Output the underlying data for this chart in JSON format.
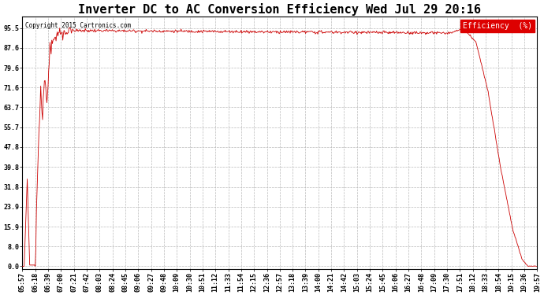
{
  "title": "Inverter DC to AC Conversion Efficiency Wed Jul 29 20:16",
  "copyright_text": "Copyright 2015 Cartronics.com",
  "legend_label": "Efficiency  (%)",
  "legend_bg": "#dd0000",
  "legend_fg": "#ffffff",
  "line_color": "#cc0000",
  "bg_color": "#ffffff",
  "grid_color": "#bbbbbb",
  "yticks": [
    0.0,
    8.0,
    15.9,
    23.9,
    31.8,
    39.8,
    47.8,
    55.7,
    63.7,
    71.6,
    79.6,
    87.6,
    95.5
  ],
  "ylim": [
    -1.0,
    100.0
  ],
  "title_fontsize": 11,
  "tick_fontsize": 6,
  "xtick_labels": [
    "05:57",
    "06:18",
    "06:39",
    "07:00",
    "07:21",
    "07:42",
    "08:03",
    "08:24",
    "08:45",
    "09:06",
    "09:27",
    "09:48",
    "10:09",
    "10:30",
    "10:51",
    "11:12",
    "11:33",
    "11:54",
    "12:15",
    "12:36",
    "12:57",
    "13:18",
    "13:39",
    "14:00",
    "14:21",
    "14:42",
    "15:03",
    "15:24",
    "15:45",
    "16:06",
    "16:27",
    "16:48",
    "17:09",
    "17:30",
    "17:51",
    "18:12",
    "18:33",
    "18:54",
    "19:15",
    "19:36",
    "19:57"
  ]
}
